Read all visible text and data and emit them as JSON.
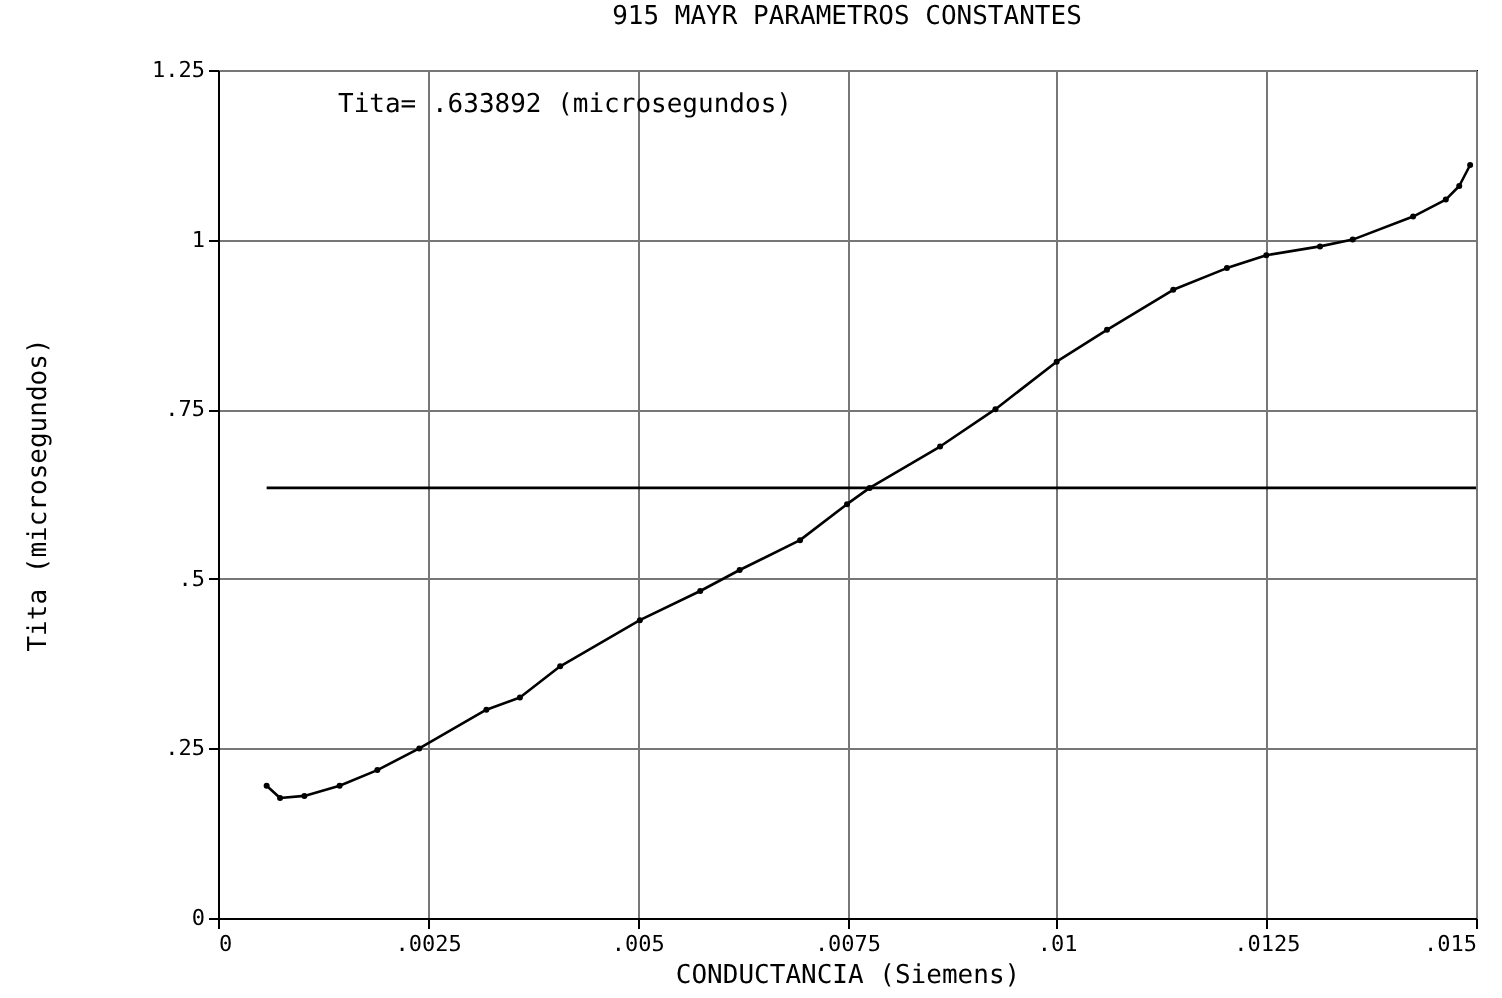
{
  "chart_data": {
    "type": "line",
    "title": "915 MAYR PARAMETROS CONSTANTES",
    "xlabel": "CONDUCTANCIA (Siemens)",
    "ylabel": "Tita (microsegundos)",
    "annotations": [
      "Tita=          .633892 (microsegundos)"
    ],
    "series": [
      {
        "color": "#000000",
        "marker": "circle",
        "x": [
          0.00058,
          0.00074,
          0.00103,
          0.00145,
          0.0019,
          0.0024,
          0.0032,
          0.0036,
          0.00408,
          0.00503,
          0.00575,
          0.00622,
          0.00694,
          0.0075,
          0.00777,
          0.00861,
          0.00927,
          0.01,
          0.0106,
          0.01139,
          0.01203,
          0.0125,
          0.01314,
          0.01353,
          0.01425,
          0.01464,
          0.0148,
          0.01493
        ],
        "values": [
          0.195,
          0.177,
          0.18,
          0.195,
          0.218,
          0.25,
          0.307,
          0.325,
          0.371,
          0.439,
          0.482,
          0.513,
          0.557,
          0.61,
          0.634,
          0.695,
          0.75,
          0.82,
          0.867,
          0.926,
          0.958,
          0.977,
          0.99,
          1.0,
          1.034,
          1.059,
          1.079,
          1.11
        ]
      },
      {
        "color": "#000000",
        "marker": "none",
        "x": [
          0.00058,
          0.015
        ],
        "values": [
          0.634,
          0.634
        ]
      }
    ],
    "xlim": [
      0,
      0.015
    ],
    "xticks": [
      0,
      {
        "value": 0.0025,
        "label": ".0025"
      },
      {
        "value": 0.005,
        "label": ".005"
      },
      {
        "value": 0.0075,
        "label": ".0075"
      },
      {
        "value": 0.01,
        "label": ".01"
      },
      {
        "value": 0.0125,
        "label": ".0125"
      },
      {
        "value": 0.015,
        "label": ".015"
      }
    ],
    "ylim": [
      0,
      1.25
    ],
    "yticks": [
      0,
      {
        "value": 0.25,
        "label": ".25"
      },
      {
        "value": 0.5,
        "label": ".5"
      },
      {
        "value": 0.75,
        "label": ".75"
      },
      1,
      1.25
    ],
    "grid": true,
    "legend": false
  }
}
